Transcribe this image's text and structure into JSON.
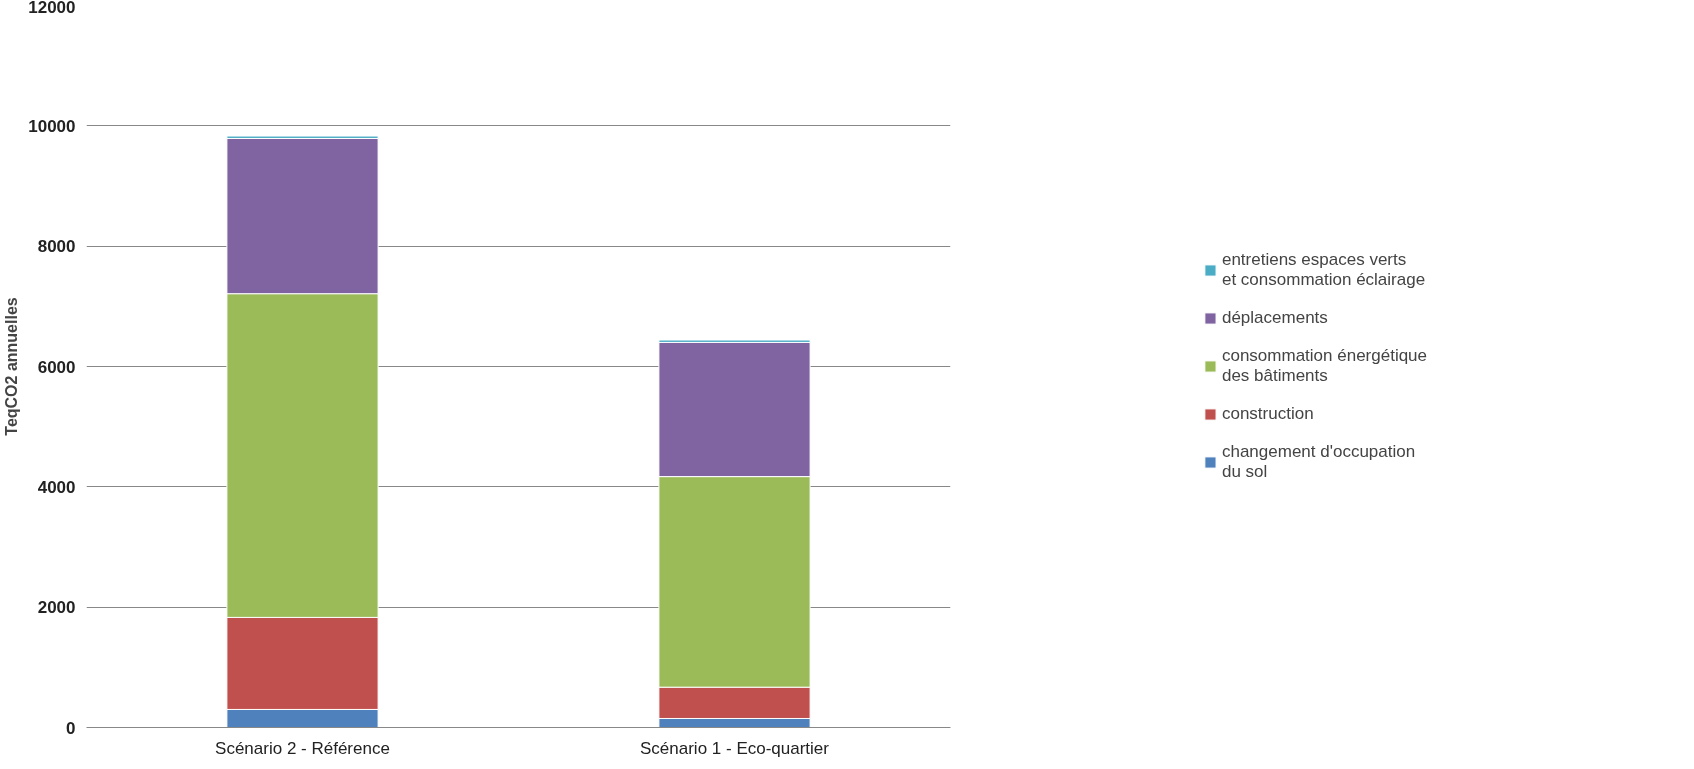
{
  "chart_data": {
    "type": "bar",
    "stacked": true,
    "ylabel": "TeqCO2 annuelles",
    "categories": [
      "Scénario 2 - Référence",
      "Scénario 1 - Eco-quartier"
    ],
    "series": [
      {
        "name": "changement d'occupation\ndu sol",
        "color": "#4f81bd",
        "values": [
          300,
          150
        ]
      },
      {
        "name": "construction",
        "color": "#c0504d",
        "values": [
          1530,
          520
        ]
      },
      {
        "name": "consommation énergétique\ndes bâtiments",
        "color": "#9bbb59",
        "values": [
          5380,
          3500
        ]
      },
      {
        "name": "déplacements",
        "color": "#8064a2",
        "values": [
          2580,
          2230
        ]
      },
      {
        "name": "entretiens espaces verts\net consommation éclairage",
        "color": "#4bacc6",
        "values": [
          40,
          40
        ]
      }
    ],
    "ylim": [
      0,
      12000
    ],
    "yticks": [
      0,
      2000,
      4000,
      6000,
      8000,
      10000,
      12000
    ],
    "grid": "y",
    "legend": "right"
  }
}
